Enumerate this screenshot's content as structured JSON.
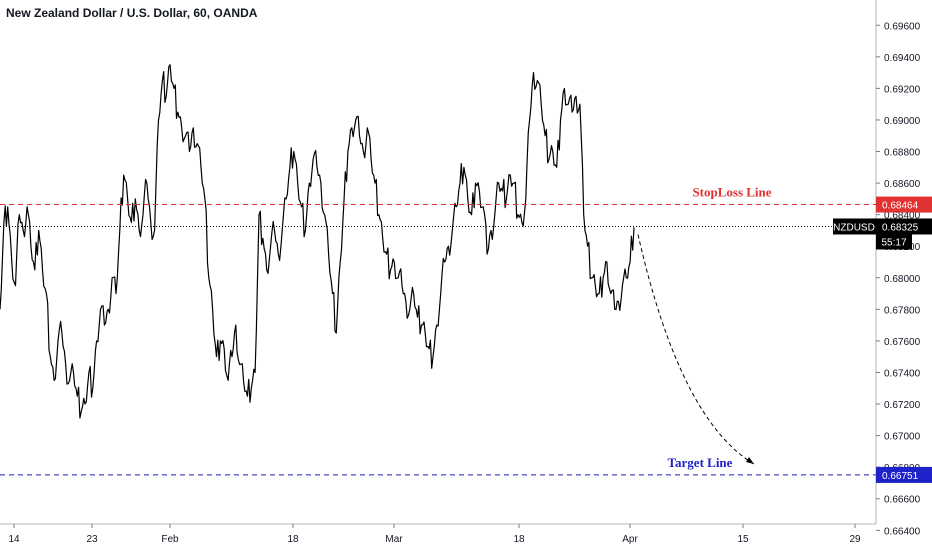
{
  "chart_data": {
    "type": "line",
    "title": "New Zealand Dollar / U.S. Dollar, 60, OANDA",
    "symbol": "NZDUSD",
    "ylim": [
      0.6644,
      0.6976
    ],
    "y_ticks": [
      "0.69600",
      "0.69400",
      "0.69200",
      "0.69000",
      "0.68800",
      "0.68600",
      "0.68400",
      "0.68200",
      "0.68000",
      "0.67800",
      "0.67600",
      "0.67400",
      "0.67200",
      "0.67000",
      "0.66800",
      "0.66600",
      "0.66400"
    ],
    "x_ticks": [
      "14",
      "23",
      "Feb",
      "18",
      "Mar",
      "18",
      "Apr",
      "15",
      "29"
    ],
    "series": [
      {
        "values": [
          0.678,
          0.6835,
          0.6845,
          0.6812,
          0.6795,
          0.684,
          0.683,
          0.6845,
          0.682,
          0.6805,
          0.683,
          0.6805,
          0.679,
          0.675,
          0.6735,
          0.676,
          0.6765,
          0.6745,
          0.6735,
          0.674,
          0.6725,
          0.6715,
          0.672,
          0.674,
          0.673,
          0.676,
          0.678,
          0.677,
          0.678,
          0.68,
          0.679,
          0.683,
          0.6865,
          0.685,
          0.6835,
          0.685,
          0.683,
          0.684,
          0.686,
          0.6835,
          0.683,
          0.69,
          0.6925,
          0.6915,
          0.6935,
          0.692,
          0.6905,
          0.6895,
          0.689,
          0.688,
          0.6895,
          0.6885,
          0.687,
          0.685,
          0.68,
          0.678,
          0.675,
          0.676,
          0.6755,
          0.6735,
          0.675,
          0.677,
          0.6745,
          0.6735,
          0.6725,
          0.673,
          0.674,
          0.684,
          0.6825,
          0.6805,
          0.682,
          0.683,
          0.6815,
          0.683,
          0.685,
          0.687,
          0.688,
          0.686,
          0.6845,
          0.683,
          0.686,
          0.6875,
          0.687,
          0.686,
          0.684,
          0.6815,
          0.679,
          0.6765,
          0.681,
          0.685,
          0.688,
          0.6895,
          0.69,
          0.689,
          0.688,
          0.6895,
          0.6875,
          0.686,
          0.684,
          0.6825,
          0.6815,
          0.6805,
          0.681,
          0.68,
          0.6795,
          0.6785,
          0.678,
          0.679,
          0.6775,
          0.677,
          0.6765,
          0.6755,
          0.675,
          0.677,
          0.679,
          0.681,
          0.682,
          0.683,
          0.6845,
          0.686,
          0.687,
          0.685,
          0.684,
          0.686,
          0.6855,
          0.6845,
          0.6815,
          0.683,
          0.684,
          0.686,
          0.6855,
          0.685,
          0.6865,
          0.686,
          0.684,
          0.6835,
          0.685,
          0.69,
          0.693,
          0.6925,
          0.691,
          0.689,
          0.6875,
          0.688,
          0.687,
          0.69,
          0.692,
          0.691,
          0.6905,
          0.6915,
          0.691,
          0.684,
          0.682,
          0.68,
          0.6795,
          0.679,
          0.68,
          0.681,
          0.679,
          0.678,
          0.6785,
          0.6795,
          0.68,
          0.681,
          0.6832
        ],
        "color": "#000000"
      }
    ],
    "stoploss": {
      "label": "StopLoss Line",
      "value": 0.68464,
      "value_text": "0.68464",
      "color": "#e03232"
    },
    "target": {
      "label": "Target Line",
      "value": 0.66751,
      "value_text": "0.66751",
      "color": "#1e22c8"
    },
    "current": {
      "value": 0.68325,
      "value_text": "0.68325",
      "countdown": "55:17"
    },
    "projection": {
      "from_value": 0.68325,
      "to_value": 0.6682
    },
    "grid": false,
    "legend": "none"
  }
}
